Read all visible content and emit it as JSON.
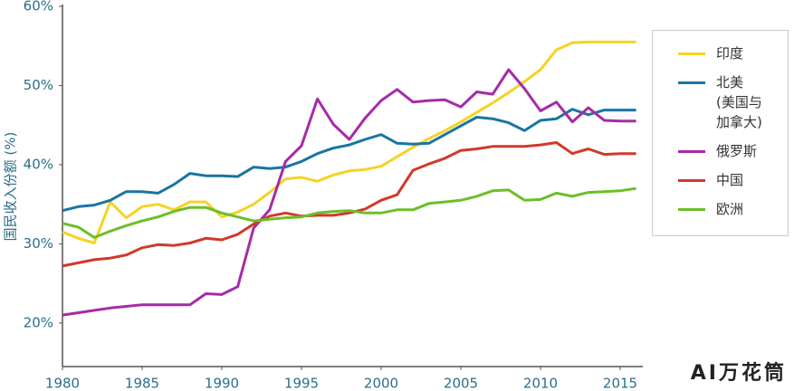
{
  "chart_data": {
    "type": "line",
    "ylabel": "国民收入份额 (%)",
    "x": [
      1980,
      1981,
      1982,
      1983,
      1984,
      1985,
      1986,
      1987,
      1988,
      1989,
      1990,
      1991,
      1992,
      1993,
      1994,
      1995,
      1996,
      1997,
      1998,
      1999,
      2000,
      2001,
      2002,
      2003,
      2004,
      2005,
      2006,
      2007,
      2008,
      2009,
      2010,
      2011,
      2012,
      2013,
      2014,
      2015,
      2016
    ],
    "xlim": [
      1980,
      2016
    ],
    "xticks": [
      1980,
      1985,
      1990,
      1995,
      2000,
      2005,
      2010,
      2015
    ],
    "ylim": [
      14.5,
      60
    ],
    "yticks": [
      {
        "value": 20,
        "label": "20%"
      },
      {
        "value": 30,
        "label": "30%"
      },
      {
        "value": 40,
        "label": "40%"
      },
      {
        "value": 50,
        "label": "50%"
      },
      {
        "value": 60,
        "label": "60%"
      }
    ],
    "series": [
      {
        "name": "印度",
        "color": "#f5d327",
        "values": [
          31.5,
          30.7,
          30.1,
          35.3,
          33.3,
          34.7,
          35.0,
          34.3,
          35.3,
          35.3,
          33.4,
          34.0,
          35.0,
          36.5,
          38.2,
          38.4,
          37.9,
          38.7,
          39.2,
          39.4,
          39.8,
          41.0,
          42.2,
          43.3,
          44.3,
          45.4,
          46.6,
          47.8,
          49.1,
          50.5,
          52.0,
          54.5,
          55.4,
          55.5,
          55.5,
          55.5,
          55.5
        ]
      },
      {
        "name": "北美\n(美国与\n加拿大)",
        "color": "#1a75a0",
        "values": [
          34.2,
          34.7,
          34.9,
          35.5,
          36.6,
          36.6,
          36.4,
          37.5,
          38.9,
          38.6,
          38.6,
          38.5,
          39.7,
          39.5,
          39.7,
          40.4,
          41.4,
          42.1,
          42.5,
          43.2,
          43.8,
          42.7,
          42.6,
          42.7,
          43.8,
          44.9,
          46.0,
          45.8,
          45.3,
          44.3,
          45.6,
          45.8,
          47.0,
          46.3,
          46.9,
          46.9,
          46.9
        ]
      },
      {
        "name": "俄罗斯",
        "color": "#a62ba8",
        "values": [
          21.0,
          21.3,
          21.6,
          21.9,
          22.1,
          22.3,
          22.3,
          22.3,
          22.3,
          23.7,
          23.6,
          24.6,
          32.0,
          34.3,
          40.4,
          42.4,
          48.3,
          45.1,
          43.2,
          45.9,
          48.1,
          49.5,
          47.9,
          48.1,
          48.2,
          47.3,
          49.2,
          48.9,
          52.0,
          49.6,
          46.8,
          47.9,
          45.4,
          47.2,
          45.6,
          45.5,
          45.5
        ]
      },
      {
        "name": "中国",
        "color": "#d03a2a",
        "values": [
          27.2,
          27.6,
          28.0,
          28.2,
          28.6,
          29.5,
          29.9,
          29.8,
          30.1,
          30.7,
          30.5,
          31.2,
          32.5,
          33.5,
          33.9,
          33.5,
          33.6,
          33.6,
          33.9,
          34.4,
          35.5,
          36.2,
          39.3,
          40.1,
          40.8,
          41.8,
          42.0,
          42.3,
          42.3,
          42.3,
          42.5,
          42.8,
          41.4,
          42.0,
          41.3,
          41.4,
          41.4
        ]
      },
      {
        "name": "欧洲",
        "color": "#6cbf2a",
        "values": [
          32.6,
          32.1,
          30.8,
          31.6,
          32.3,
          32.9,
          33.4,
          34.1,
          34.6,
          34.6,
          33.9,
          33.4,
          32.9,
          33.1,
          33.3,
          33.4,
          33.9,
          34.1,
          34.2,
          33.9,
          33.9,
          34.3,
          34.3,
          35.1,
          35.3,
          35.5,
          36.0,
          36.7,
          36.8,
          35.5,
          35.6,
          36.4,
          36.0,
          36.5,
          36.6,
          36.7,
          37.0
        ]
      }
    ]
  },
  "watermark": "AI万花筒"
}
